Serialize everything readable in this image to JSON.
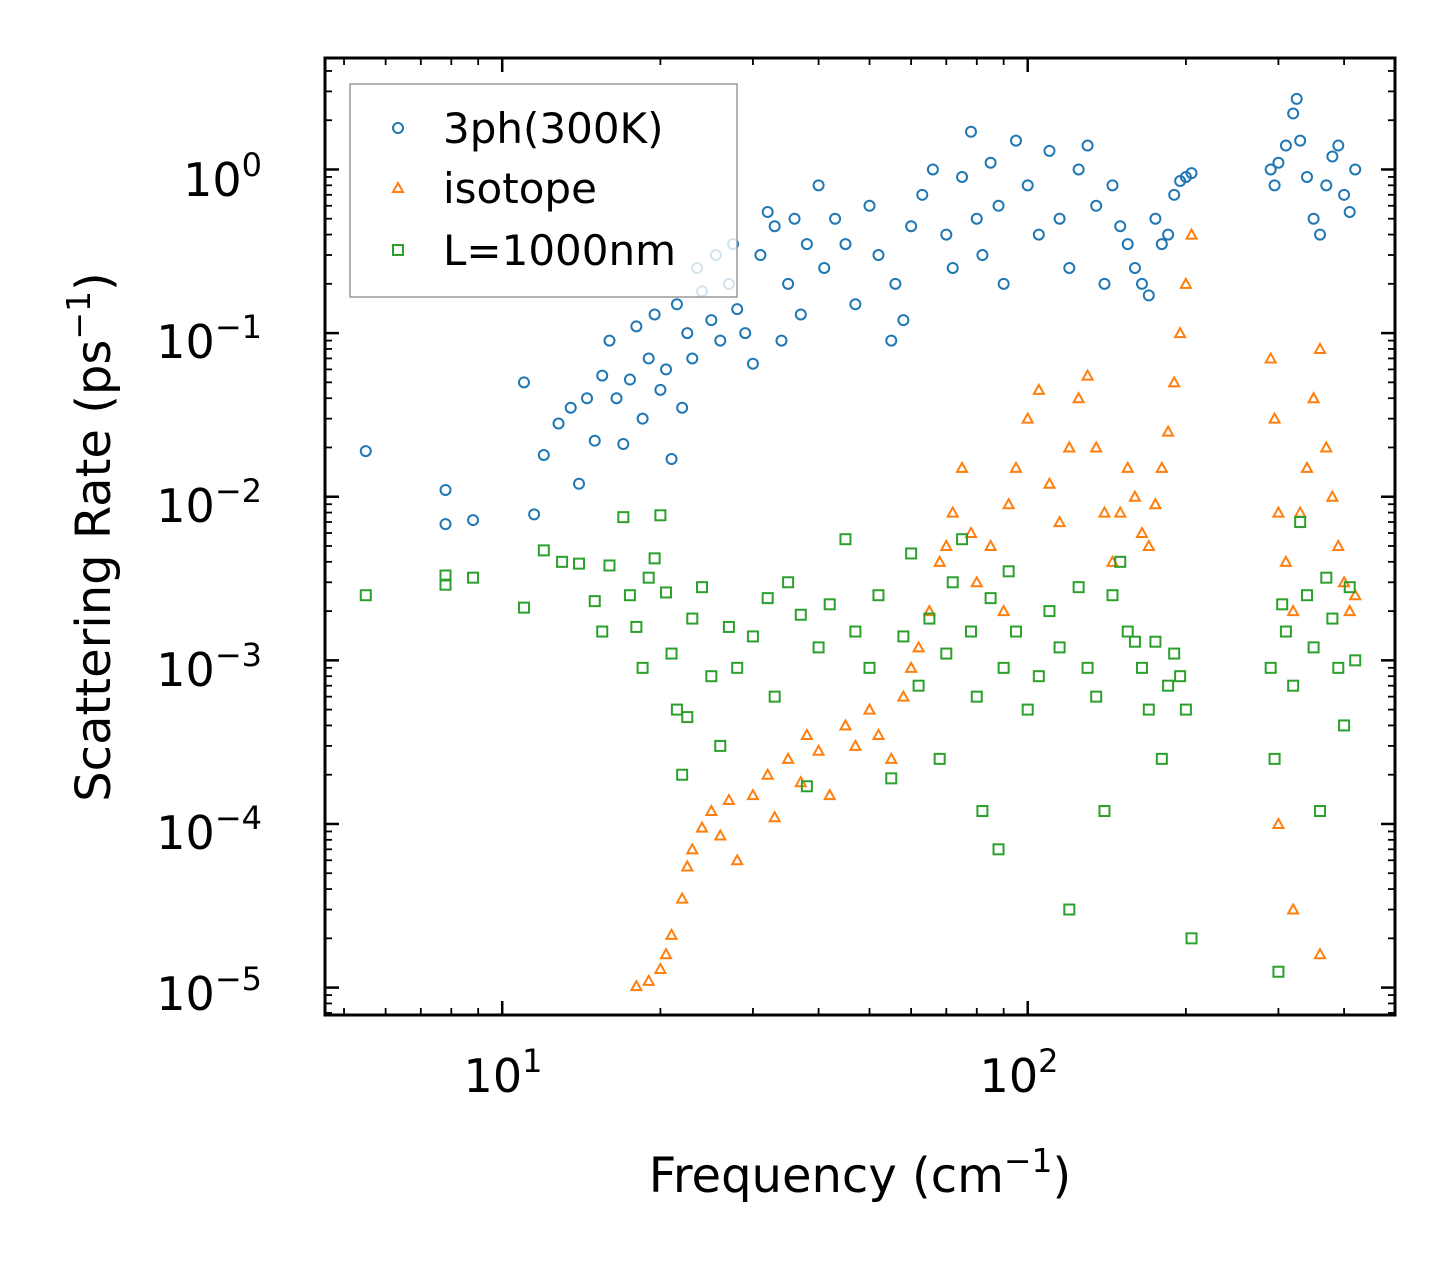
{
  "chart_data": {
    "type": "scatter",
    "title": "",
    "xlabel": "Frequency (cm",
    "xlabel_sup": "−1",
    "xlabel_end": ")",
    "ylabel": "Scattering Rate (ps",
    "ylabel_sup": "−1",
    "ylabel_end": ")",
    "xscale": "log",
    "yscale": "log",
    "xlim": [
      4.6,
      500
    ],
    "ylim": [
      6.8e-06,
      4.8
    ],
    "x_ticks": [
      {
        "value": 10,
        "base": "10",
        "exp": "1"
      },
      {
        "value": 100,
        "base": "10",
        "exp": "2"
      }
    ],
    "y_ticks": [
      {
        "value": 1,
        "base": "10",
        "exp": "0"
      },
      {
        "value": 0.1,
        "base": "10",
        "exp": "−1"
      },
      {
        "value": 0.01,
        "base": "10",
        "exp": "−2"
      },
      {
        "value": 0.001,
        "base": "10",
        "exp": "−3"
      },
      {
        "value": 0.0001,
        "base": "10",
        "exp": "−4"
      },
      {
        "value": 1e-05,
        "base": "10",
        "exp": "−5"
      }
    ],
    "legend_position": "top-left",
    "series": [
      {
        "name": "3ph(300K)",
        "marker": "circle",
        "color": "#1f77b4",
        "points": [
          [
            5.5,
            0.019
          ],
          [
            7.8,
            0.011
          ],
          [
            7.8,
            0.0068
          ],
          [
            8.8,
            0.0072
          ],
          [
            11,
            0.05
          ],
          [
            11.5,
            0.0078
          ],
          [
            12,
            0.018
          ],
          [
            12.8,
            0.028
          ],
          [
            13.5,
            0.035
          ],
          [
            14,
            0.012
          ],
          [
            14.5,
            0.04
          ],
          [
            15,
            0.022
          ],
          [
            15.5,
            0.055
          ],
          [
            16,
            0.09
          ],
          [
            16.5,
            0.04
          ],
          [
            17,
            0.021
          ],
          [
            17.5,
            0.052
          ],
          [
            18,
            0.11
          ],
          [
            18.5,
            0.03
          ],
          [
            19,
            0.07
          ],
          [
            19.5,
            0.13
          ],
          [
            20,
            0.045
          ],
          [
            20.5,
            0.06
          ],
          [
            21,
            0.017
          ],
          [
            21.5,
            0.15
          ],
          [
            22,
            0.035
          ],
          [
            22.5,
            0.1
          ],
          [
            23,
            0.07
          ],
          [
            23.5,
            0.25
          ],
          [
            24,
            0.18
          ],
          [
            25,
            0.12
          ],
          [
            25.5,
            0.3
          ],
          [
            26,
            0.09
          ],
          [
            27,
            0.2
          ],
          [
            27.5,
            0.35
          ],
          [
            28,
            0.14
          ],
          [
            29,
            0.1
          ],
          [
            30,
            0.065
          ],
          [
            31,
            0.3
          ],
          [
            32,
            0.55
          ],
          [
            33,
            0.45
          ],
          [
            34,
            0.09
          ],
          [
            35,
            0.2
          ],
          [
            36,
            0.5
          ],
          [
            37,
            0.13
          ],
          [
            38,
            0.35
          ],
          [
            40,
            0.8
          ],
          [
            41,
            0.25
          ],
          [
            43,
            0.5
          ],
          [
            45,
            0.35
          ],
          [
            47,
            0.15
          ],
          [
            50,
            0.6
          ],
          [
            52,
            0.3
          ],
          [
            55,
            0.09
          ],
          [
            56,
            0.2
          ],
          [
            58,
            0.12
          ],
          [
            60,
            0.45
          ],
          [
            63,
            0.7
          ],
          [
            66,
            1.0
          ],
          [
            70,
            0.4
          ],
          [
            72,
            0.25
          ],
          [
            75,
            0.9
          ],
          [
            78,
            1.7
          ],
          [
            80,
            0.5
          ],
          [
            82,
            0.3
          ],
          [
            85,
            1.1
          ],
          [
            88,
            0.6
          ],
          [
            90,
            0.2
          ],
          [
            95,
            1.5
          ],
          [
            100,
            0.8
          ],
          [
            105,
            0.4
          ],
          [
            110,
            1.3
          ],
          [
            115,
            0.5
          ],
          [
            120,
            0.25
          ],
          [
            125,
            1.0
          ],
          [
            130,
            1.4
          ],
          [
            135,
            0.6
          ],
          [
            140,
            0.2
          ],
          [
            145,
            0.8
          ],
          [
            150,
            0.45
          ],
          [
            155,
            0.35
          ],
          [
            160,
            0.25
          ],
          [
            165,
            0.2
          ],
          [
            170,
            0.17
          ],
          [
            175,
            0.5
          ],
          [
            180,
            0.35
          ],
          [
            185,
            0.4
          ],
          [
            190,
            0.7
          ],
          [
            195,
            0.85
          ],
          [
            200,
            0.9
          ],
          [
            205,
            0.95
          ],
          [
            290,
            1.0
          ],
          [
            295,
            0.8
          ],
          [
            300,
            1.1
          ],
          [
            310,
            1.4
          ],
          [
            320,
            2.2
          ],
          [
            325,
            2.7
          ],
          [
            330,
            1.5
          ],
          [
            340,
            0.9
          ],
          [
            350,
            0.5
          ],
          [
            360,
            0.4
          ],
          [
            370,
            0.8
          ],
          [
            380,
            1.2
          ],
          [
            390,
            1.4
          ],
          [
            400,
            0.7
          ],
          [
            410,
            0.55
          ],
          [
            420,
            1.0
          ]
        ]
      },
      {
        "name": "isotope",
        "marker": "triangle",
        "color": "#ff7f0e",
        "points": [
          [
            18,
            1.02e-05
          ],
          [
            19,
            1.1e-05
          ],
          [
            20,
            1.3e-05
          ],
          [
            20.5,
            1.6e-05
          ],
          [
            21,
            2.1e-05
          ],
          [
            22,
            3.5e-05
          ],
          [
            22.5,
            5.5e-05
          ],
          [
            23,
            7e-05
          ],
          [
            24,
            9.5e-05
          ],
          [
            25,
            0.00012
          ],
          [
            26,
            8.5e-05
          ],
          [
            27,
            0.00014
          ],
          [
            28,
            6e-05
          ],
          [
            30,
            0.00015
          ],
          [
            32,
            0.0002
          ],
          [
            33,
            0.00011
          ],
          [
            35,
            0.00025
          ],
          [
            37,
            0.00018
          ],
          [
            38,
            0.00035
          ],
          [
            40,
            0.00028
          ],
          [
            42,
            0.00015
          ],
          [
            45,
            0.0004
          ],
          [
            47,
            0.0003
          ],
          [
            50,
            0.0005
          ],
          [
            52,
            0.00035
          ],
          [
            55,
            0.00025
          ],
          [
            58,
            0.0006
          ],
          [
            60,
            0.0009
          ],
          [
            62,
            0.0012
          ],
          [
            65,
            0.002
          ],
          [
            68,
            0.004
          ],
          [
            70,
            0.005
          ],
          [
            72,
            0.008
          ],
          [
            75,
            0.015
          ],
          [
            78,
            0.006
          ],
          [
            80,
            0.003
          ],
          [
            85,
            0.005
          ],
          [
            90,
            0.002
          ],
          [
            92,
            0.009
          ],
          [
            95,
            0.015
          ],
          [
            100,
            0.03
          ],
          [
            105,
            0.045
          ],
          [
            110,
            0.012
          ],
          [
            115,
            0.007
          ],
          [
            120,
            0.02
          ],
          [
            125,
            0.04
          ],
          [
            130,
            0.055
          ],
          [
            135,
            0.02
          ],
          [
            140,
            0.008
          ],
          [
            145,
            0.004
          ],
          [
            150,
            0.008
          ],
          [
            155,
            0.015
          ],
          [
            160,
            0.01
          ],
          [
            165,
            0.006
          ],
          [
            170,
            0.005
          ],
          [
            175,
            0.009
          ],
          [
            180,
            0.015
          ],
          [
            185,
            0.025
          ],
          [
            190,
            0.05
          ],
          [
            195,
            0.1
          ],
          [
            200,
            0.2
          ],
          [
            205,
            0.4
          ],
          [
            290,
            0.07
          ],
          [
            295,
            0.03
          ],
          [
            300,
            0.008
          ],
          [
            310,
            0.004
          ],
          [
            320,
            0.002
          ],
          [
            330,
            0.008
          ],
          [
            340,
            0.015
          ],
          [
            350,
            0.04
          ],
          [
            360,
            0.08
          ],
          [
            370,
            0.02
          ],
          [
            380,
            0.01
          ],
          [
            390,
            0.005
          ],
          [
            400,
            0.003
          ],
          [
            410,
            0.002
          ],
          [
            420,
            0.0025
          ],
          [
            300,
            0.0001
          ],
          [
            320,
            3e-05
          ],
          [
            360,
            1.6e-05
          ]
        ]
      },
      {
        "name": "L=1000nm",
        "marker": "square",
        "color": "#2ca02c",
        "points": [
          [
            5.5,
            0.0025
          ],
          [
            7.8,
            0.0033
          ],
          [
            7.8,
            0.0029
          ],
          [
            8.8,
            0.0032
          ],
          [
            11,
            0.0021
          ],
          [
            12,
            0.0047
          ],
          [
            13,
            0.004
          ],
          [
            14,
            0.0039
          ],
          [
            15,
            0.0023
          ],
          [
            15.5,
            0.0015
          ],
          [
            16,
            0.0038
          ],
          [
            17,
            0.0075
          ],
          [
            17.5,
            0.0025
          ],
          [
            18,
            0.0016
          ],
          [
            18.5,
            0.0009
          ],
          [
            19,
            0.0032
          ],
          [
            19.5,
            0.0042
          ],
          [
            20,
            0.0077
          ],
          [
            20.5,
            0.0026
          ],
          [
            21,
            0.0011
          ],
          [
            21.5,
            0.0005
          ],
          [
            22,
            0.0002
          ],
          [
            22.5,
            0.00045
          ],
          [
            23,
            0.0018
          ],
          [
            24,
            0.0028
          ],
          [
            25,
            0.0008
          ],
          [
            26,
            0.0003
          ],
          [
            27,
            0.0016
          ],
          [
            28,
            0.0009
          ],
          [
            30,
            0.0014
          ],
          [
            32,
            0.0024
          ],
          [
            33,
            0.0006
          ],
          [
            35,
            0.003
          ],
          [
            37,
            0.0019
          ],
          [
            38,
            0.00017
          ],
          [
            40,
            0.0012
          ],
          [
            42,
            0.0022
          ],
          [
            45,
            0.0055
          ],
          [
            47,
            0.0015
          ],
          [
            50,
            0.0009
          ],
          [
            52,
            0.0025
          ],
          [
            55,
            0.00019
          ],
          [
            58,
            0.0014
          ],
          [
            60,
            0.0045
          ],
          [
            62,
            0.0007
          ],
          [
            65,
            0.0018
          ],
          [
            68,
            0.00025
          ],
          [
            70,
            0.0011
          ],
          [
            72,
            0.003
          ],
          [
            75,
            0.0055
          ],
          [
            78,
            0.0015
          ],
          [
            80,
            0.0006
          ],
          [
            82,
            0.00012
          ],
          [
            85,
            0.0024
          ],
          [
            88,
            7e-05
          ],
          [
            90,
            0.0009
          ],
          [
            92,
            0.0035
          ],
          [
            95,
            0.0015
          ],
          [
            100,
            0.0005
          ],
          [
            105,
            0.0008
          ],
          [
            110,
            0.002
          ],
          [
            115,
            0.0012
          ],
          [
            120,
            3e-05
          ],
          [
            125,
            0.0028
          ],
          [
            130,
            0.0009
          ],
          [
            135,
            0.0006
          ],
          [
            140,
            0.00012
          ],
          [
            145,
            0.0025
          ],
          [
            150,
            0.004
          ],
          [
            155,
            0.0015
          ],
          [
            160,
            0.0013
          ],
          [
            165,
            0.0009
          ],
          [
            170,
            0.0005
          ],
          [
            175,
            0.0013
          ],
          [
            180,
            0.00025
          ],
          [
            185,
            0.0007
          ],
          [
            190,
            0.0011
          ],
          [
            195,
            0.0008
          ],
          [
            200,
            0.0005
          ],
          [
            205,
            2e-05
          ],
          [
            290,
            0.0009
          ],
          [
            295,
            0.00025
          ],
          [
            300,
            1.25e-05
          ],
          [
            305,
            0.0022
          ],
          [
            310,
            0.0015
          ],
          [
            320,
            0.0007
          ],
          [
            330,
            0.007
          ],
          [
            340,
            0.0025
          ],
          [
            350,
            0.0012
          ],
          [
            360,
            0.00012
          ],
          [
            370,
            0.0032
          ],
          [
            380,
            0.0018
          ],
          [
            390,
            0.0009
          ],
          [
            400,
            0.0004
          ],
          [
            410,
            0.0028
          ],
          [
            420,
            0.001
          ]
        ]
      }
    ]
  }
}
